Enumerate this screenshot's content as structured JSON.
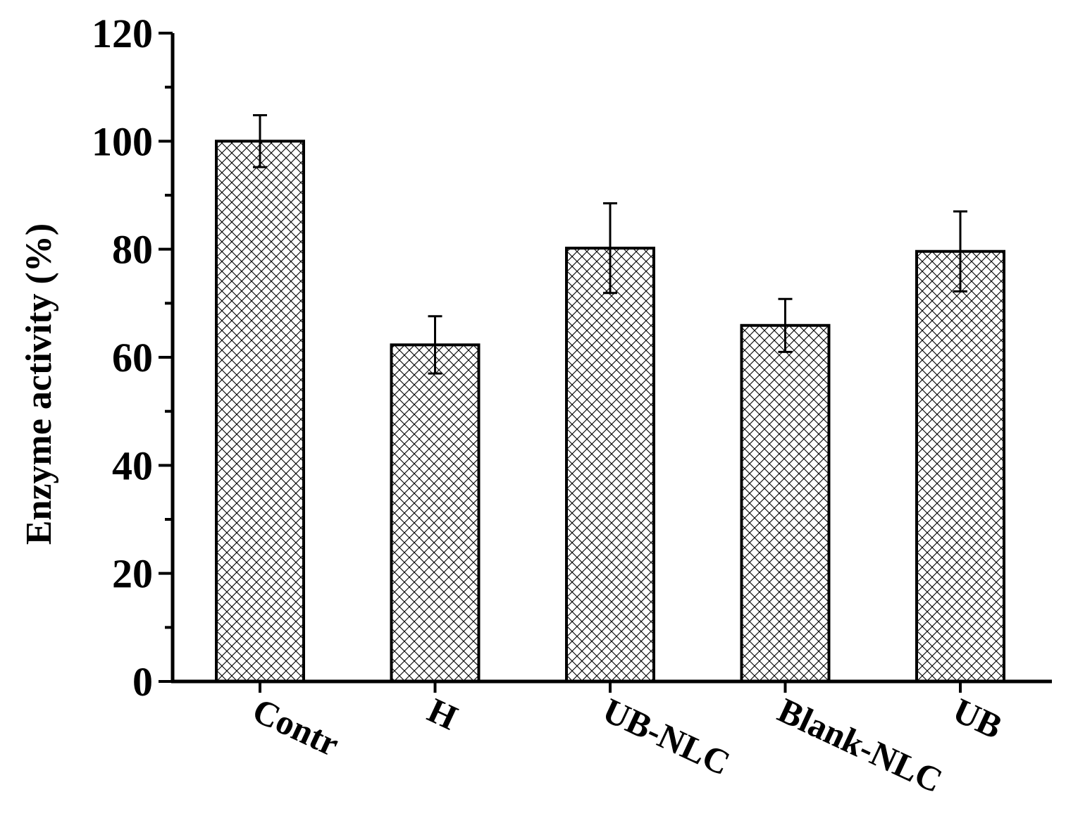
{
  "chart_data": {
    "type": "bar",
    "title": "",
    "xlabel": "",
    "ylabel": "Enzyme activity (%)",
    "ylim": [
      0,
      120
    ],
    "yticks": [
      0,
      20,
      40,
      60,
      80,
      100,
      120
    ],
    "y_minor_step": 10,
    "grid": false,
    "legend": "none",
    "bar_fill": "crosshatch",
    "colors": {
      "bar_stroke": "#000000",
      "hatch": "#000000",
      "background": "#ffffff"
    },
    "categories": [
      "Contr",
      "H",
      "UB-NLC",
      "Blank-NLC",
      "UB"
    ],
    "values": [
      100,
      62.3,
      80.2,
      65.9,
      79.6
    ],
    "errors": [
      4.8,
      5.3,
      8.3,
      4.9,
      7.4
    ]
  }
}
